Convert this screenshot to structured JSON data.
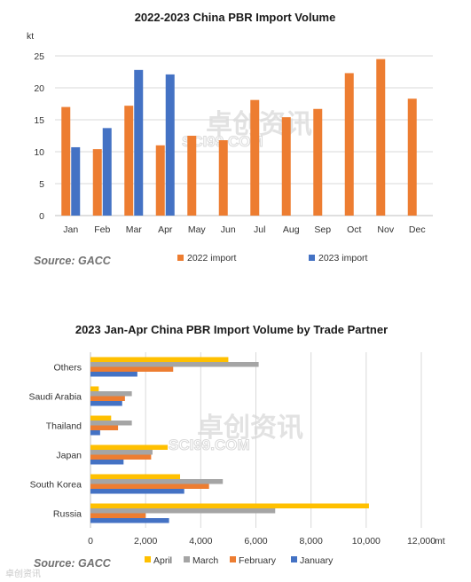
{
  "chart_data": [
    {
      "type": "bar",
      "title": "2022-2023  China PBR Import Volume",
      "unit": "kt",
      "categories": [
        "Jan",
        "Feb",
        "Mar",
        "Apr",
        "May",
        "Jun",
        "Jul",
        "Aug",
        "Sep",
        "Oct",
        "Nov",
        "Dec"
      ],
      "series": [
        {
          "name": "2022 import",
          "color": "#ED7D31",
          "values": [
            17.0,
            10.4,
            17.2,
            11.0,
            12.5,
            11.8,
            18.1,
            15.4,
            16.7,
            22.3,
            24.5,
            18.3
          ]
        },
        {
          "name": "2023 import",
          "color": "#4472C4",
          "values": [
            10.7,
            13.7,
            22.8,
            22.1,
            null,
            null,
            null,
            null,
            null,
            null,
            null,
            null
          ]
        }
      ],
      "ylim": [
        0,
        25
      ],
      "yticks": [
        0,
        5,
        10,
        15,
        20,
        25
      ],
      "grid": true,
      "legend": "bottom",
      "source": "Source: GACC"
    },
    {
      "type": "bar",
      "orientation": "horizontal",
      "title": "2023  Jan-Apr China PBR Import Volume by Trade Partner",
      "unit": "mt",
      "categories": [
        "Russia",
        "South Korea",
        "Japan",
        "Thailand",
        "Saudi Arabia",
        "Others"
      ],
      "series": [
        {
          "name": "January",
          "color": "#4472C4",
          "values": [
            2850,
            3400,
            1200,
            350,
            1150,
            1700
          ]
        },
        {
          "name": "February",
          "color": "#ED7D31",
          "values": [
            2000,
            4300,
            2200,
            1000,
            1250,
            3000
          ]
        },
        {
          "name": "March",
          "color": "#A5A5A5",
          "values": [
            6700,
            4800,
            2250,
            1500,
            1500,
            6100
          ]
        },
        {
          "name": "April",
          "color": "#FFC000",
          "values": [
            10100,
            3250,
            2800,
            750,
            300,
            5000
          ]
        }
      ],
      "xlim": [
        0,
        12000
      ],
      "xticks": [
        0,
        2000,
        4000,
        6000,
        8000,
        10000,
        12000
      ],
      "xtick_labels": [
        "0",
        "2,000",
        "4,000",
        "6,000",
        "8,000",
        "10,000",
        "12,000"
      ],
      "grid": true,
      "legend": "bottom",
      "legend_order": [
        "April",
        "March",
        "February",
        "January"
      ],
      "source": "Source: GACC"
    }
  ],
  "watermark": {
    "cn": "卓创资讯",
    "en": "SCI99.COM"
  },
  "footer_mark": "卓创资讯"
}
